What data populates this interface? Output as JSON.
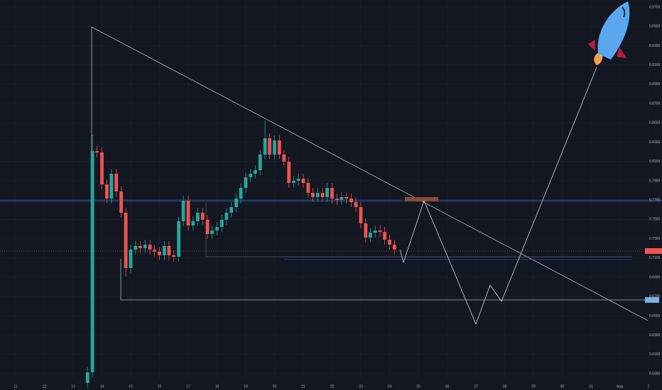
{
  "chart_data": {
    "type": "candlestick",
    "colors": {
      "up": "#26a69a",
      "down": "#ef5350"
    },
    "grid": true,
    "x": [
      13.5,
      13.67,
      13.83,
      14,
      14.17,
      14.33,
      14.5,
      14.67,
      14.83,
      15,
      15.17,
      15.33,
      15.5,
      15.67,
      15.83,
      16,
      16.17,
      16.33,
      16.5,
      16.67,
      16.83,
      17,
      17.17,
      17.33,
      17.5,
      17.67,
      17.83,
      18,
      18.17,
      18.33,
      18.5,
      18.67,
      18.83,
      19,
      19.17,
      19.33,
      19.5,
      19.67,
      19.83,
      20,
      20.17,
      20.33,
      20.5,
      20.67,
      20.83,
      21,
      21.17,
      21.33,
      21.5,
      21.67,
      21.83,
      22,
      22.17,
      22.33,
      22.5,
      22.67,
      22.83,
      23,
      23.17,
      23.33,
      23.5,
      23.67,
      23.83,
      24,
      24.17
    ],
    "open": [
      0.5805,
      0.5915,
      0.8208,
      0.8194,
      0.7863,
      0.7716,
      0.7973,
      0.779,
      0.7569,
      0.6996,
      0.7187,
      0.7224,
      0.7202,
      0.7238,
      0.7187,
      0.7165,
      0.7128,
      0.7224,
      0.7128,
      0.7113,
      0.7481,
      0.7694,
      0.7437,
      0.7481,
      0.7569,
      0.7496,
      0.7349,
      0.7385,
      0.7422,
      0.7496,
      0.7569,
      0.7628,
      0.7716,
      0.7826,
      0.7937,
      0.7973,
      0.801,
      0.8172,
      0.8341,
      0.8172,
      0.8319,
      0.8172,
      0.8098,
      0.7878,
      0.79,
      0.7922,
      0.7878,
      0.7775,
      0.7731,
      0.7775,
      0.7731,
      0.7826,
      0.7716,
      0.7701,
      0.7731,
      0.7716,
      0.7679,
      0.7628,
      0.7459,
      0.7312,
      0.7363,
      0.7385,
      0.7371,
      0.729,
      0.7238
    ],
    "high": [
      0.5965,
      0.8377,
      0.8258,
      0.8244,
      0.7913,
      0.8023,
      0.8023,
      0.784,
      0.7619,
      0.7237,
      0.7274,
      0.7274,
      0.7288,
      0.7288,
      0.7237,
      0.7215,
      0.7274,
      0.7274,
      0.7178,
      0.7531,
      0.7744,
      0.7744,
      0.7531,
      0.7619,
      0.7619,
      0.7546,
      0.7435,
      0.7472,
      0.7546,
      0.7619,
      0.7678,
      0.7766,
      0.7876,
      0.7987,
      0.8023,
      0.806,
      0.8222,
      0.852,
      0.8391,
      0.8369,
      0.8369,
      0.8222,
      0.8148,
      0.795,
      0.7972,
      0.7972,
      0.7928,
      0.7825,
      0.7825,
      0.7825,
      0.7876,
      0.7876,
      0.7766,
      0.7781,
      0.7781,
      0.7766,
      0.7729,
      0.7678,
      0.7509,
      0.7413,
      0.7435,
      0.7435,
      0.7421,
      0.734,
      0.7288
    ],
    "low": [
      0.5755,
      0.5865,
      0.8144,
      0.7813,
      0.7666,
      0.7666,
      0.774,
      0.7519,
      0.6908,
      0.6946,
      0.7137,
      0.7152,
      0.7152,
      0.7137,
      0.7115,
      0.7078,
      0.7078,
      0.7078,
      0.7063,
      0.7063,
      0.7431,
      0.7387,
      0.7387,
      0.7431,
      0.7446,
      0.7299,
      0.7299,
      0.7335,
      0.7372,
      0.7446,
      0.7519,
      0.7578,
      0.7666,
      0.7776,
      0.7887,
      0.7923,
      0.796,
      0.8122,
      0.8122,
      0.8122,
      0.8122,
      0.8048,
      0.7828,
      0.7828,
      0.785,
      0.7828,
      0.7725,
      0.7681,
      0.7681,
      0.7681,
      0.7681,
      0.7666,
      0.7651,
      0.7651,
      0.7666,
      0.7629,
      0.7578,
      0.7409,
      0.7262,
      0.7262,
      0.7313,
      0.7321,
      0.724,
      0.7188,
      0.7137
    ],
    "close": [
      0.5915,
      0.8208,
      0.8194,
      0.7863,
      0.7716,
      0.7973,
      0.779,
      0.7569,
      0.6996,
      0.7187,
      0.7224,
      0.7202,
      0.7238,
      0.7187,
      0.7165,
      0.7128,
      0.7224,
      0.7128,
      0.7113,
      0.7481,
      0.7694,
      0.7437,
      0.7481,
      0.7569,
      0.7496,
      0.7349,
      0.7385,
      0.7422,
      0.7496,
      0.7569,
      0.7628,
      0.7716,
      0.7826,
      0.7937,
      0.7973,
      0.801,
      0.8172,
      0.8341,
      0.8172,
      0.8319,
      0.8172,
      0.8098,
      0.7878,
      0.79,
      0.7922,
      0.7878,
      0.7775,
      0.7731,
      0.7775,
      0.7731,
      0.7826,
      0.7716,
      0.7701,
      0.7731,
      0.7716,
      0.7679,
      0.7628,
      0.7459,
      0.7312,
      0.7363,
      0.7385,
      0.7371,
      0.729,
      0.7238,
      0.7187
    ],
    "xlim": [
      10.457,
      33.47
    ],
    "xticks": [
      11,
      12,
      13,
      14,
      15,
      16,
      17,
      18,
      19,
      20,
      21,
      22,
      23,
      24,
      25,
      26,
      27,
      28,
      29,
      30,
      31,
      {
        "value": 32,
        "label": "Aug"
      },
      {
        "value": 33,
        "label": "2"
      }
    ],
    "ylim": [
      0.5842,
      0.9774
    ],
    "yticks": [
      {
        "value": 0.59,
        "label": "0.5900"
      },
      {
        "value": 0.61,
        "label": "0.6100"
      },
      {
        "value": 0.63,
        "label": "0.6300"
      },
      {
        "value": 0.65,
        "label": "0.6500"
      },
      {
        "value": 0.67,
        "label": "0.6700"
      },
      {
        "value": 0.69,
        "label": "0.6900"
      },
      {
        "value": 0.71,
        "label": "0.7100"
      },
      {
        "value": 0.73,
        "label": "0.7300"
      },
      {
        "value": 0.75,
        "label": "0.7500"
      },
      {
        "value": 0.77,
        "label": "0.7700"
      },
      {
        "value": 0.79,
        "label": "0.7900"
      },
      {
        "value": 0.81,
        "label": "0.8100"
      },
      {
        "value": 0.83,
        "label": "0.8300"
      },
      {
        "value": 0.85,
        "label": "0.8500"
      },
      {
        "value": 0.87,
        "label": "0.8700"
      },
      {
        "value": 0.89,
        "label": "0.8900"
      },
      {
        "value": 0.91,
        "label": "0.9100"
      },
      {
        "value": 0.93,
        "label": "0.9300"
      },
      {
        "value": 0.95,
        "label": "0.9500"
      },
      {
        "value": 0.97,
        "label": "0.9700"
      }
    ]
  }
}
